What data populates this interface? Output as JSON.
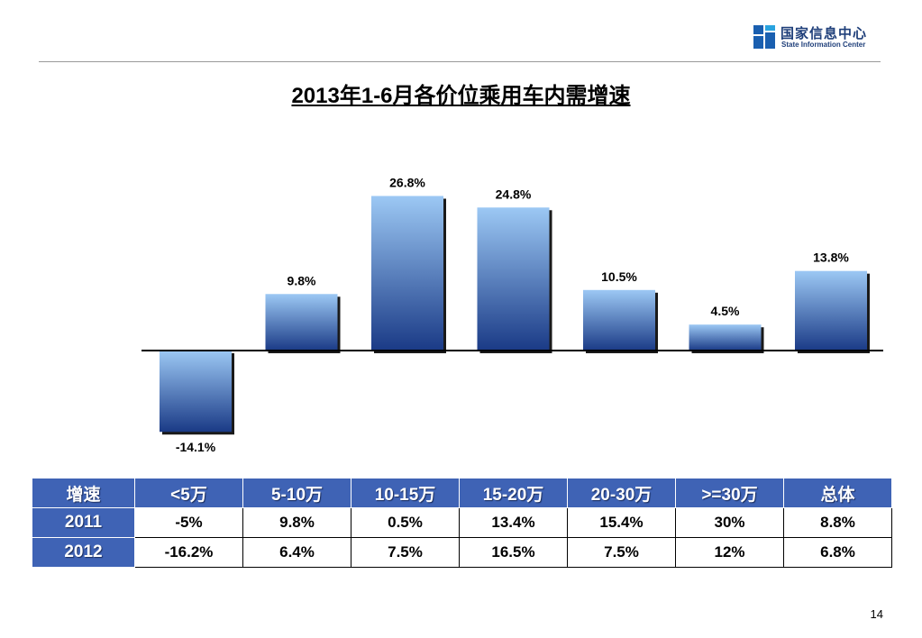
{
  "logo": {
    "name_cn": "国家信息中心",
    "name_en": "State Information Center"
  },
  "title": "2013年1-6月各价位乘用车内需增速",
  "chart_data": {
    "type": "bar",
    "categories": [
      "<5万",
      "5-10万",
      "10-15万",
      "15-20万",
      "20-30万",
      ">=30万",
      "总体"
    ],
    "values": [
      -14.1,
      9.8,
      26.8,
      24.8,
      10.5,
      4.5,
      13.8
    ],
    "data_labels": [
      "-14.1%",
      "9.8%",
      "26.8%",
      "24.8%",
      "10.5%",
      "4.5%",
      "13.8%"
    ],
    "unit": "%",
    "title": "2013年1-6月各价位乘用车内需增速",
    "grid": false,
    "legend": "none",
    "colors": {
      "bar_top": "#9cc8f4",
      "bar_bottom": "#1a3a86",
      "shadow": "#1a1a1a"
    }
  },
  "table": {
    "header": [
      "增速",
      "<5万",
      "5-10万",
      "10-15万",
      "15-20万",
      "20-30万",
      ">=30万",
      "总体"
    ],
    "rows": [
      {
        "label": "2011",
        "values": [
          "-5%",
          "9.8%",
          "0.5%",
          "13.4%",
          "15.4%",
          "30%",
          "8.8%"
        ]
      },
      {
        "label": "2012",
        "values": [
          "-16.2%",
          "6.4%",
          "7.5%",
          "16.5%",
          "7.5%",
          "12%",
          "6.8%"
        ]
      }
    ]
  },
  "page_number": "14"
}
